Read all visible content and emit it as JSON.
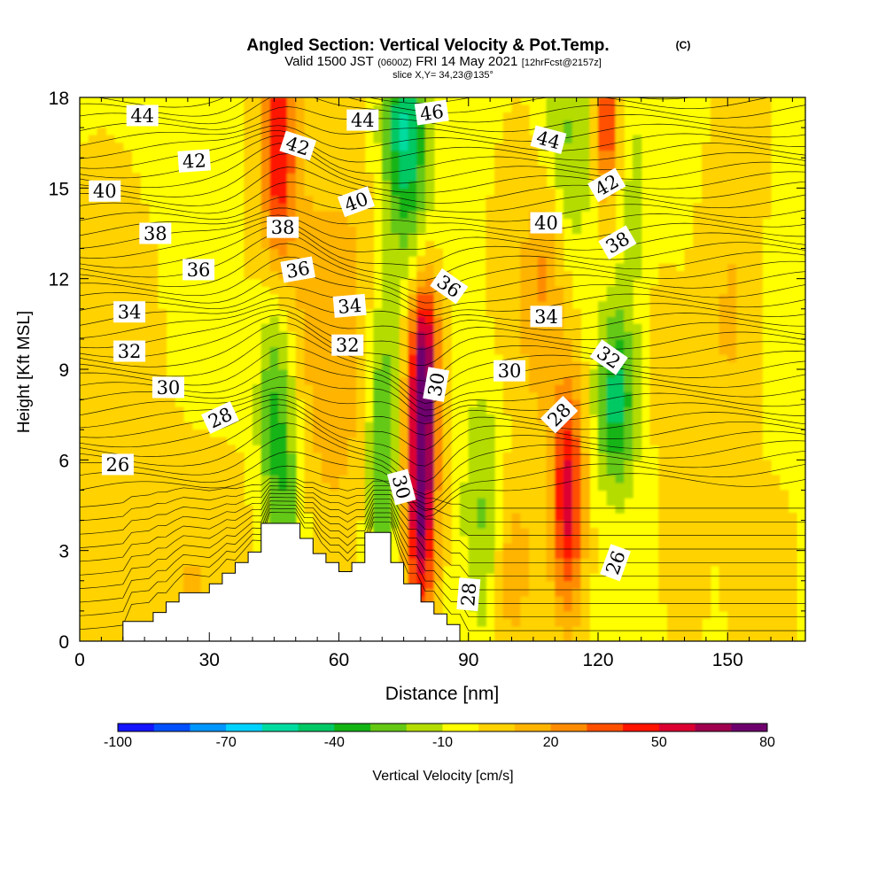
{
  "chart_data": {
    "type": "heatmap",
    "title": "Angled Section: Vertical Velocity & Pot.Temp.",
    "title_unit": "(C)",
    "subtitle_parts": [
      "Valid 1500 JST",
      "(0600Z)",
      "FRI 14 May 2021",
      "[12hrFcst@2157z]"
    ],
    "slice_label": "slice X,Y= 34,23@135°",
    "xlabel": "Distance [nm]",
    "ylabel": "Height [Kft MSL]",
    "xlim": [
      0,
      168
    ],
    "ylim": [
      0,
      18
    ],
    "x_ticks": [
      0,
      30,
      60,
      90,
      120,
      150
    ],
    "y_ticks": [
      0,
      3,
      6,
      9,
      12,
      15,
      18
    ],
    "grid": false,
    "colorbar": {
      "label": "Vertical Velocity [cm/s]",
      "tick_values": [
        -100,
        -70,
        -40,
        -10,
        20,
        50,
        80
      ],
      "bounds": [
        -100,
        80
      ],
      "colors": [
        "#1414ff",
        "#0050ff",
        "#0096ff",
        "#00d2ff",
        "#00dca0",
        "#00c864",
        "#14b414",
        "#64c814",
        "#b4dc00",
        "#ffff00",
        "#ffd200",
        "#ffb400",
        "#ff8c00",
        "#ff5000",
        "#ff1400",
        "#dc0032",
        "#a00050",
        "#6e006e"
      ]
    },
    "velocity_features": [
      {
        "x": 5,
        "y": 8,
        "sx": 10,
        "sy": 6,
        "v": 6
      },
      {
        "x": 27,
        "y": 2,
        "sx": 10,
        "sy": 2.5,
        "v": 12
      },
      {
        "x": 46,
        "y": 16.5,
        "sx": 2.5,
        "sy": 3,
        "v": 42
      },
      {
        "x": 47,
        "y": 13,
        "sx": 5,
        "sy": 6,
        "v": 15
      },
      {
        "x": 45,
        "y": 9,
        "sx": 3,
        "sy": 3,
        "v": -25
      },
      {
        "x": 47,
        "y": 5,
        "sx": 3.5,
        "sy": 3.5,
        "v": -28
      },
      {
        "x": 57,
        "y": 9,
        "sx": 5,
        "sy": 4,
        "v": 14
      },
      {
        "x": 63,
        "y": 11,
        "sx": 5,
        "sy": 5,
        "v": 10
      },
      {
        "x": 70,
        "y": 6.5,
        "sx": 2.5,
        "sy": 3.5,
        "v": -32
      },
      {
        "x": 75,
        "y": 17,
        "sx": 3.5,
        "sy": 2.5,
        "v": -45
      },
      {
        "x": 78,
        "y": 13,
        "sx": 3,
        "sy": 4,
        "v": -12
      },
      {
        "x": 79,
        "y": 5.5,
        "sx": 2.4,
        "sy": 3.4,
        "v": 85
      },
      {
        "x": 80,
        "y": 9.5,
        "sx": 2.5,
        "sy": 2,
        "v": 45
      },
      {
        "x": 93,
        "y": 3.5,
        "sx": 3,
        "sy": 2.5,
        "v": -18
      },
      {
        "x": 95,
        "y": 7,
        "sx": 5,
        "sy": 2,
        "v": -8
      },
      {
        "x": 100,
        "y": 2,
        "sx": 3,
        "sy": 2,
        "v": 14
      },
      {
        "x": 104,
        "y": 9,
        "sx": 6,
        "sy": 5,
        "v": 12
      },
      {
        "x": 113,
        "y": 4.8,
        "sx": 2.5,
        "sy": 2.7,
        "v": 55
      },
      {
        "x": 113,
        "y": 16.5,
        "sx": 4,
        "sy": 3,
        "v": -20
      },
      {
        "x": 108,
        "y": 12.5,
        "sx": 3,
        "sy": 2,
        "v": 18
      },
      {
        "x": 122,
        "y": 17.5,
        "sx": 2,
        "sy": 2,
        "v": 48
      },
      {
        "x": 124,
        "y": 8,
        "sx": 3,
        "sy": 2,
        "v": -42
      },
      {
        "x": 128,
        "y": 14,
        "sx": 3,
        "sy": 5,
        "v": -10
      },
      {
        "x": 133,
        "y": 9.5,
        "sx": 4,
        "sy": 2,
        "v": 8
      },
      {
        "x": 140,
        "y": 4,
        "sx": 3,
        "sy": 3,
        "v": 12
      },
      {
        "x": 150,
        "y": 10,
        "sx": 5,
        "sy": 3,
        "v": 12
      },
      {
        "x": 155,
        "y": 16,
        "sx": 5,
        "sy": 3,
        "v": 10
      },
      {
        "x": 162,
        "y": 13.5,
        "sx": 3,
        "sy": 3,
        "v": -8
      },
      {
        "x": 158,
        "y": 2,
        "sx": 5,
        "sy": 2,
        "v": 10
      }
    ],
    "terrain": {
      "x": [
        0,
        10,
        10,
        17,
        17,
        20,
        20,
        23,
        23,
        30,
        30,
        33,
        33,
        36,
        36,
        39,
        39,
        42,
        42,
        51,
        51,
        54,
        54,
        57,
        57,
        60,
        60,
        63,
        63,
        66,
        66,
        72,
        72,
        75,
        75,
        79,
        79,
        82,
        82,
        85,
        85,
        88,
        88,
        168
      ],
      "y": [
        0,
        0,
        0.65,
        0.65,
        0.95,
        0.95,
        1.3,
        1.3,
        1.6,
        1.6,
        1.9,
        1.9,
        2.25,
        2.25,
        2.6,
        2.6,
        2.95,
        2.95,
        3.9,
        3.9,
        3.4,
        3.4,
        2.9,
        2.9,
        2.6,
        2.6,
        2.3,
        2.3,
        2.6,
        2.6,
        3.6,
        3.6,
        2.6,
        2.6,
        1.9,
        1.9,
        1.3,
        1.3,
        0.9,
        0.9,
        0.55,
        0.55,
        0,
        0
      ]
    },
    "theta_levels": [
      26,
      28,
      30,
      32,
      34,
      36,
      38,
      40,
      42,
      44,
      46
    ],
    "theta_labels": [
      {
        "text": "44",
        "x": 14.5,
        "y": 17.4,
        "rot": 0
      },
      {
        "text": "42",
        "x": 26.5,
        "y": 15.9,
        "rot": -4
      },
      {
        "text": "40",
        "x": 5.8,
        "y": 14.9,
        "rot": 0
      },
      {
        "text": "38",
        "x": 17.5,
        "y": 13.5,
        "rot": 0
      },
      {
        "text": "36",
        "x": 27.5,
        "y": 12.3,
        "rot": 0
      },
      {
        "text": "34",
        "x": 11.5,
        "y": 10.9,
        "rot": 0
      },
      {
        "text": "32",
        "x": 11.5,
        "y": 9.6,
        "rot": 0
      },
      {
        "text": "30",
        "x": 20.5,
        "y": 8.4,
        "rot": 0
      },
      {
        "text": "28",
        "x": 32.5,
        "y": 7.4,
        "rot": -25
      },
      {
        "text": "26",
        "x": 8.8,
        "y": 5.85,
        "rot": 0
      },
      {
        "text": "42",
        "x": 50.5,
        "y": 16.4,
        "rot": 18
      },
      {
        "text": "38",
        "x": 47,
        "y": 13.7,
        "rot": 0
      },
      {
        "text": "36",
        "x": 50.5,
        "y": 12.3,
        "rot": -10
      },
      {
        "text": "44",
        "x": 65.5,
        "y": 17.25,
        "rot": 0
      },
      {
        "text": "40",
        "x": 64,
        "y": 14.55,
        "rot": -20
      },
      {
        "text": "34",
        "x": 62.5,
        "y": 11.1,
        "rot": -5
      },
      {
        "text": "32",
        "x": 62,
        "y": 9.8,
        "rot": 0
      },
      {
        "text": "30",
        "x": 74.5,
        "y": 5.1,
        "rot": 75
      },
      {
        "text": "46",
        "x": 81.5,
        "y": 17.5,
        "rot": -8
      },
      {
        "text": "30",
        "x": 82.5,
        "y": 8.5,
        "rot": -80
      },
      {
        "text": "36",
        "x": 85.5,
        "y": 11.75,
        "rot": 35
      },
      {
        "text": "30",
        "x": 99.5,
        "y": 8.95,
        "rot": 0
      },
      {
        "text": "28",
        "x": 90,
        "y": 1.55,
        "rot": -85
      },
      {
        "text": "44",
        "x": 108.5,
        "y": 16.6,
        "rot": 15
      },
      {
        "text": "40",
        "x": 108,
        "y": 13.85,
        "rot": 0
      },
      {
        "text": "34",
        "x": 108,
        "y": 10.75,
        "rot": 0
      },
      {
        "text": "28",
        "x": 111,
        "y": 7.5,
        "rot": -45
      },
      {
        "text": "42",
        "x": 122,
        "y": 15.1,
        "rot": -30
      },
      {
        "text": "38",
        "x": 124.5,
        "y": 13.2,
        "rot": -30
      },
      {
        "text": "32",
        "x": 122.5,
        "y": 9.4,
        "rot": 35
      },
      {
        "text": "26",
        "x": 124,
        "y": 2.6,
        "rot": -70
      }
    ]
  }
}
